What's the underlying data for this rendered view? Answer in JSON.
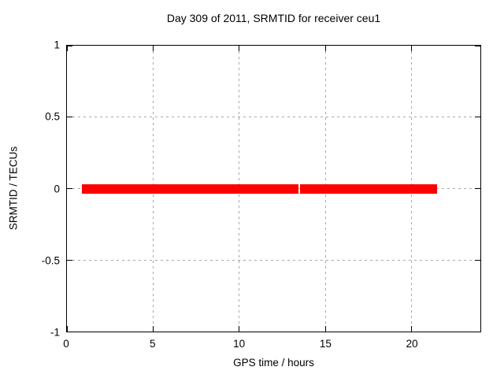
{
  "figure": {
    "title": "Day 309 of 2011, SRMTID for receiver ceu1",
    "xlabel": "GPS time / hours",
    "ylabel": "SRMTID / TECUs"
  },
  "colors": {
    "series": "#ff0000",
    "grid": "#a8a8a8",
    "border": "#000000",
    "background": "#ffffff",
    "text": "#000000"
  },
  "chart_data": {
    "type": "line",
    "title": "Day 309 of 2011, SRMTID for receiver ceu1",
    "xlabel": "GPS time / hours",
    "ylabel": "SRMTID / TECUs",
    "xlim": [
      0,
      24
    ],
    "ylim": [
      -1,
      1
    ],
    "xticks": [
      "0",
      "5",
      "10",
      "15",
      "20"
    ],
    "yticks": [
      "1",
      "0.5",
      "0",
      "-0.5",
      "-1"
    ],
    "grid": true,
    "grid_style": "dashed",
    "legend": "none",
    "series": [
      {
        "name": "SRMTID",
        "color": "#ff0000",
        "render": "thick horizontal band of densely overlapping points at y = 0",
        "segments": [
          {
            "x_start": 0.85,
            "x_end": 13.42,
            "y": 0
          },
          {
            "x_start": 13.52,
            "x_end": 21.5,
            "y": 0
          }
        ]
      }
    ]
  }
}
